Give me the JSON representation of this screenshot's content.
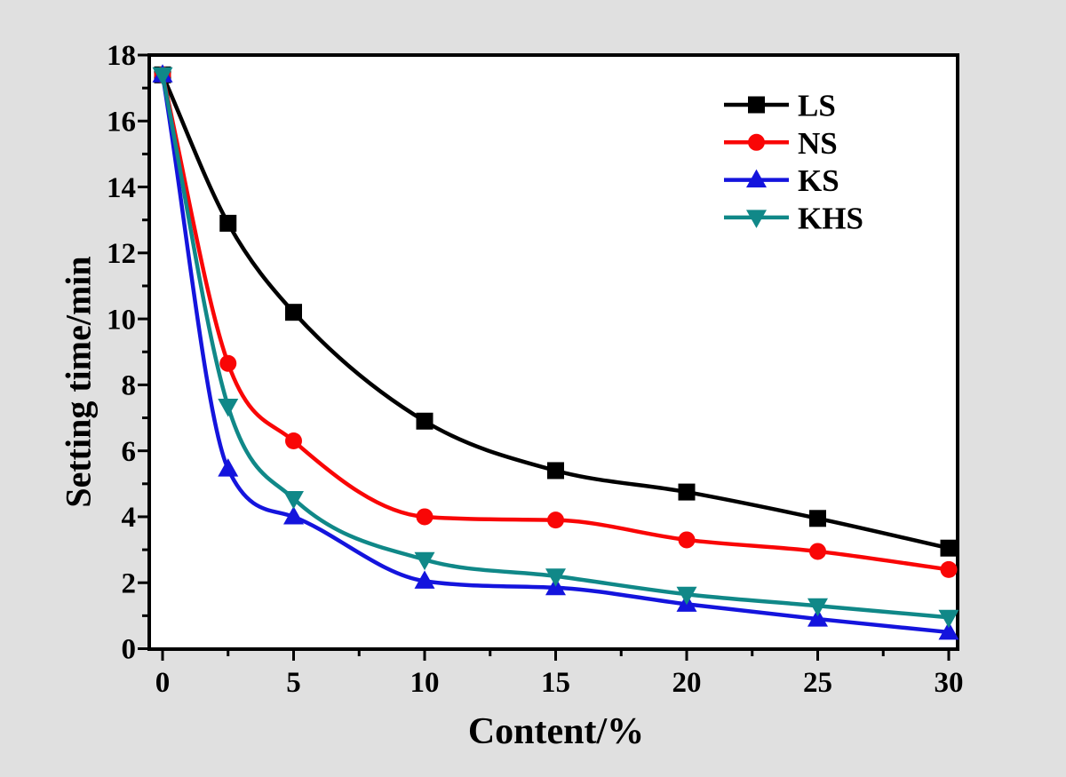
{
  "page": {
    "background": "#e0e0e0",
    "plot_background": "#ffffff",
    "frame_color": "#000000"
  },
  "chart_data": {
    "type": "line",
    "title": "",
    "xlabel": "Content/%",
    "ylabel": "Setting time/min",
    "x": [
      0,
      2.5,
      5,
      10,
      15,
      20,
      25,
      30
    ],
    "series": [
      {
        "name": "LS",
        "color": "#000000",
        "marker": "square",
        "values": [
          17.4,
          12.9,
          10.2,
          6.9,
          5.4,
          4.75,
          3.95,
          3.05
        ]
      },
      {
        "name": "NS",
        "color": "#f90606",
        "marker": "circle",
        "values": [
          17.4,
          8.65,
          6.3,
          4.0,
          3.9,
          3.3,
          2.95,
          2.4
        ]
      },
      {
        "name": "KS",
        "color": "#1414dd",
        "marker": "triangle-up",
        "values": [
          17.4,
          5.45,
          4.0,
          2.05,
          1.85,
          1.35,
          0.9,
          0.5
        ]
      },
      {
        "name": "KHS",
        "color": "#108888",
        "marker": "triangle-down",
        "values": [
          17.4,
          7.35,
          4.55,
          2.7,
          2.2,
          1.65,
          1.3,
          0.95
        ]
      }
    ],
    "xlim": [
      0,
      30
    ],
    "ylim": [
      0,
      18
    ],
    "xticks": [
      0,
      5,
      10,
      15,
      20,
      25,
      30
    ],
    "xticks_minor": [
      2.5,
      7.5,
      12.5,
      17.5,
      22.5,
      27.5
    ],
    "yticks": [
      0,
      2,
      4,
      6,
      8,
      10,
      12,
      14,
      16,
      18
    ],
    "yticks_minor": [
      1,
      3,
      5,
      7,
      9,
      11,
      13,
      15,
      17
    ],
    "grid": false,
    "legend": {
      "position": "top-right-inside",
      "entries": [
        "LS",
        "NS",
        "KS",
        "KHS"
      ]
    }
  }
}
